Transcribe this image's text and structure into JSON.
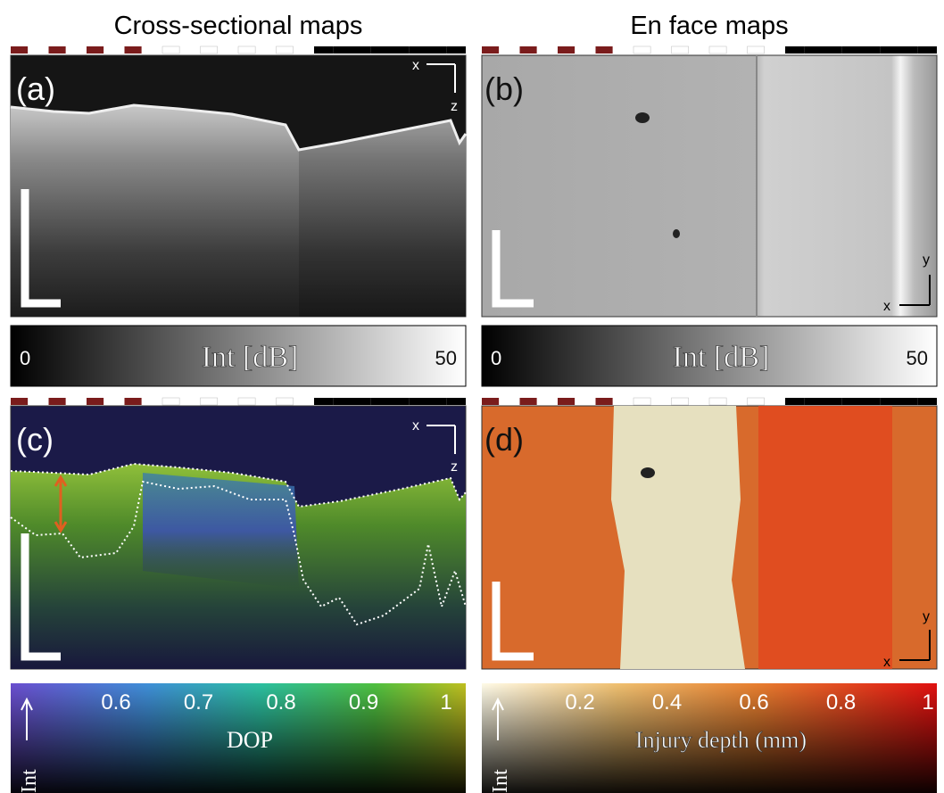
{
  "titles": {
    "left": "Cross-sectional maps",
    "right": "En face maps"
  },
  "panels": [
    {
      "label": "(a)",
      "axis_h": "x",
      "axis_v": "z"
    },
    {
      "label": "(b)",
      "axis_h": "x",
      "axis_v": "y"
    },
    {
      "label": "(c)",
      "axis_h": "x",
      "axis_v": "z"
    },
    {
      "label": "(d)",
      "axis_h": "x",
      "axis_v": "y"
    }
  ],
  "colorbars": [
    {
      "min": "0",
      "title": "Int [dB]",
      "max": "50"
    },
    {
      "min": "0",
      "title": "Int [dB]",
      "max": "50"
    },
    {
      "ticks": [
        "0.6",
        "0.7",
        "0.8",
        "0.9",
        "1"
      ],
      "title": "DOP",
      "side": "Int"
    },
    {
      "ticks": [
        "0.2",
        "0.4",
        "0.6",
        "0.8",
        "1"
      ],
      "title": "Injury depth (mm)",
      "side": "Int"
    }
  ]
}
